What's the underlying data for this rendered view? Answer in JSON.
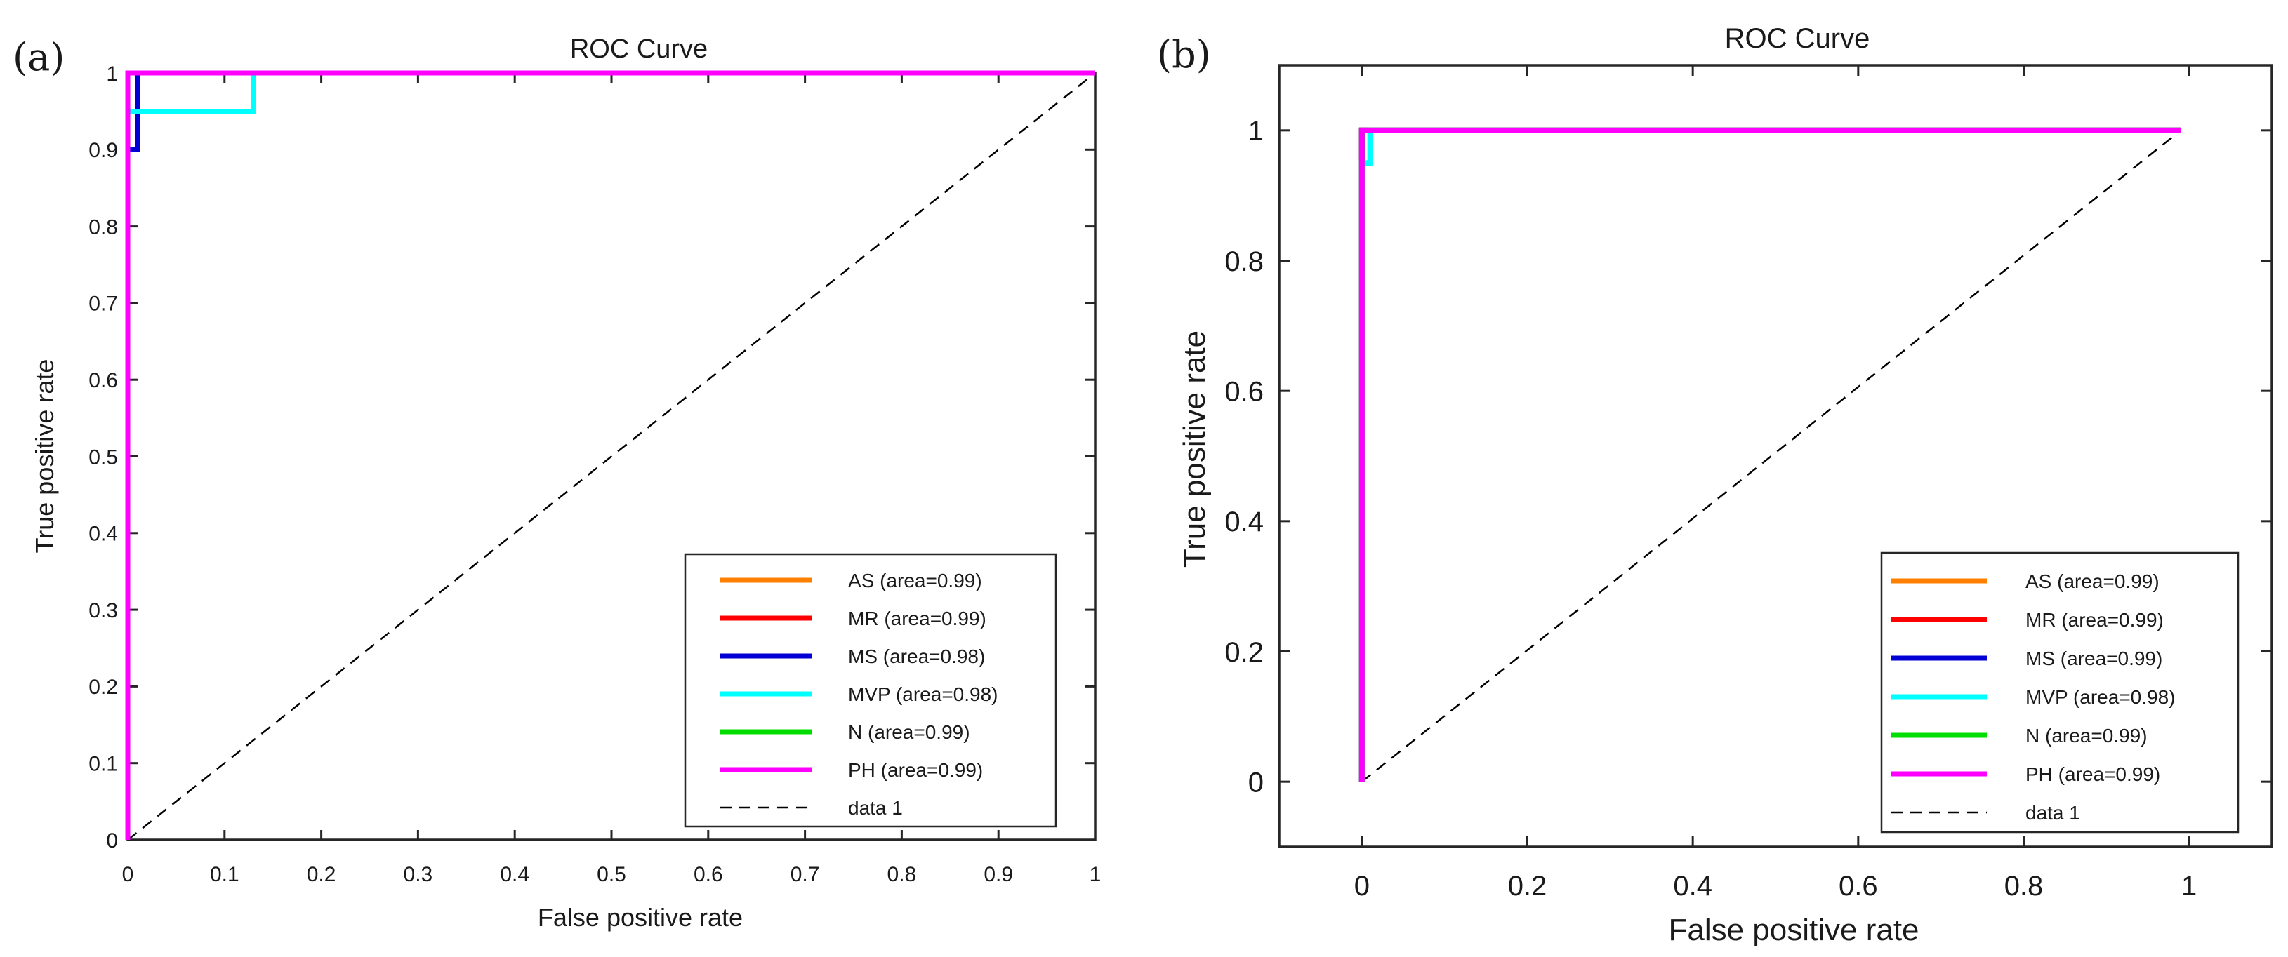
{
  "chart_data": [
    {
      "type": "line",
      "panel_label": "(a)",
      "title": "ROC Curve",
      "xlabel": "False positive rate",
      "ylabel": "True positive rate",
      "xlim": [
        0,
        1
      ],
      "ylim": [
        0,
        1
      ],
      "xticks": [
        0,
        0.1,
        0.2,
        0.3,
        0.4,
        0.5,
        0.6,
        0.7,
        0.8,
        0.9,
        1
      ],
      "xtick_labels": [
        "0",
        "0.1",
        "0.2",
        "0.3",
        "0.4",
        "0.5",
        "0.6",
        "0.7",
        "0.8",
        "0.9",
        "1"
      ],
      "yticks": [
        0,
        0.1,
        0.2,
        0.3,
        0.4,
        0.5,
        0.6,
        0.7,
        0.8,
        0.9,
        1
      ],
      "ytick_labels": [
        "0",
        "0.1",
        "0.2",
        "0.3",
        "0.4",
        "0.5",
        "0.6",
        "0.7",
        "0.8",
        "0.9",
        "1"
      ],
      "grid": false,
      "legend_position": "bottom-right",
      "series": [
        {
          "name": "AS (area=0.99)",
          "color": "#ff8000",
          "x": [
            0,
            0,
            1
          ],
          "y": [
            0,
            1,
            1
          ]
        },
        {
          "name": "MR (area=0.99)",
          "color": "#ff0000",
          "x": [
            0,
            0,
            1
          ],
          "y": [
            0,
            1,
            1
          ]
        },
        {
          "name": "MS (area=0.98)",
          "color": "#0000d4",
          "x": [
            0,
            0,
            0.01,
            0.01,
            1
          ],
          "y": [
            0,
            0.9,
            0.9,
            1,
            1
          ]
        },
        {
          "name": "MVP (area=0.98)",
          "color": "#00ffff",
          "x": [
            0,
            0,
            0.13,
            0.13,
            1
          ],
          "y": [
            0,
            0.95,
            0.95,
            1,
            1
          ]
        },
        {
          "name": "N (area=0.99)",
          "color": "#00dd00",
          "x": [
            0,
            0,
            1
          ],
          "y": [
            0,
            1,
            1
          ]
        },
        {
          "name": "PH (area=0.99)",
          "color": "#ff00ff",
          "x": [
            0,
            0,
            1
          ],
          "y": [
            0,
            1,
            1
          ]
        },
        {
          "name": "data 1",
          "color": "#000000",
          "dashed": true,
          "x": [
            0,
            1
          ],
          "y": [
            0,
            1
          ]
        }
      ]
    },
    {
      "type": "line",
      "panel_label": "(b)",
      "title": "ROC Curve",
      "xlabel": "False positive rate",
      "ylabel": "True positive rate",
      "xlim": [
        -0.1,
        1.1
      ],
      "ylim": [
        -0.1,
        1.1
      ],
      "xticks": [
        0,
        0.2,
        0.4,
        0.6,
        0.8,
        1
      ],
      "xtick_labels": [
        "0",
        "0.2",
        "0.4",
        "0.6",
        "0.8",
        "1"
      ],
      "yticks": [
        0,
        0.2,
        0.4,
        0.6,
        0.8,
        1
      ],
      "ytick_labels": [
        "0",
        "0.2",
        "0.4",
        "0.6",
        "0.8",
        "1"
      ],
      "grid": false,
      "legend_position": "bottom-right",
      "series": [
        {
          "name": "AS (area=0.99)",
          "color": "#ff8000",
          "x": [
            0,
            0,
            0.99
          ],
          "y": [
            0,
            1,
            1
          ]
        },
        {
          "name": "MR (area=0.99)",
          "color": "#ff0000",
          "x": [
            0,
            0,
            0.99
          ],
          "y": [
            0,
            1,
            1
          ]
        },
        {
          "name": "MS (area=0.99)",
          "color": "#0000d4",
          "x": [
            0,
            0,
            0.99
          ],
          "y": [
            0,
            1,
            1
          ]
        },
        {
          "name": "MVP (area=0.98)",
          "color": "#00ffff",
          "x": [
            0,
            0,
            0.01,
            0.01,
            0.99
          ],
          "y": [
            0,
            0.95,
            0.95,
            1,
            1
          ]
        },
        {
          "name": "N (area=0.99)",
          "color": "#00dd00",
          "x": [
            0,
            0,
            0.99
          ],
          "y": [
            0,
            1,
            1
          ]
        },
        {
          "name": "PH (area=0.99)",
          "color": "#ff00ff",
          "x": [
            0,
            0,
            0.99
          ],
          "y": [
            0,
            1,
            1
          ]
        },
        {
          "name": "data 1",
          "color": "#000000",
          "dashed": true,
          "x": [
            0,
            0.99
          ],
          "y": [
            0,
            1
          ]
        }
      ]
    }
  ]
}
